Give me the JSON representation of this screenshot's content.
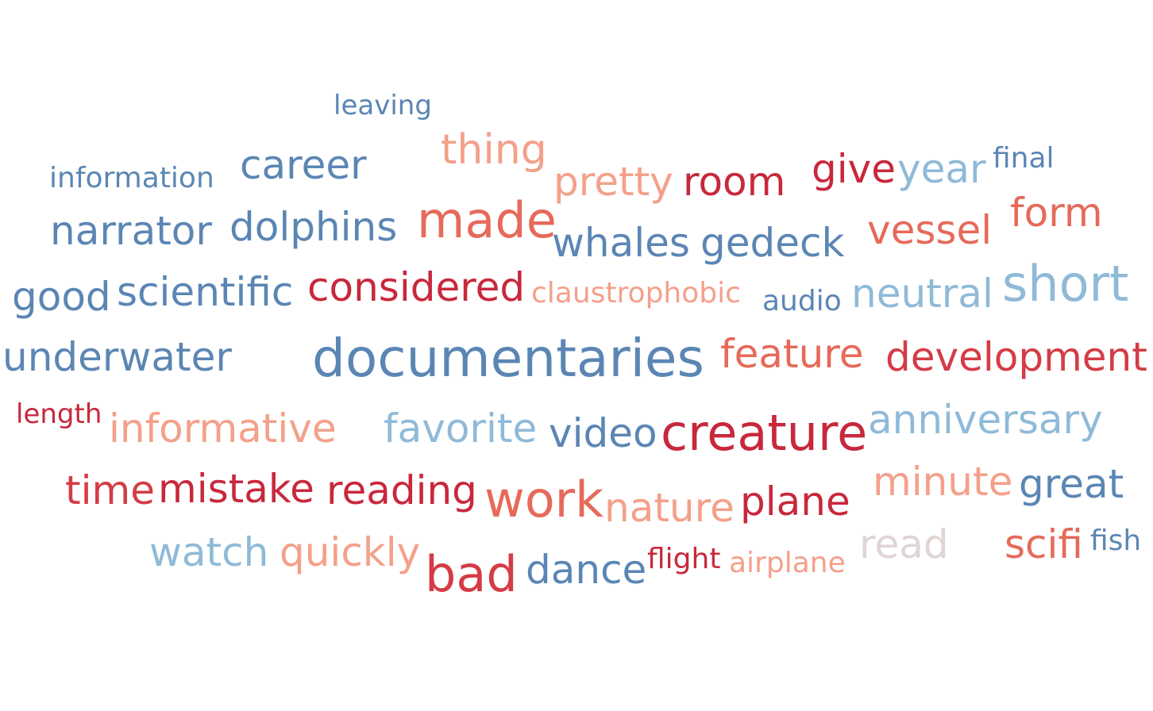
{
  "chart_data": {
    "type": "word_cloud",
    "color_scale": {
      "negative": "#c8283c",
      "positive": "#4a7aaa",
      "neutral": "#e0d4d4"
    },
    "words": [
      {
        "text": "leaving",
        "weight": 1,
        "color": "#5b86b4"
      },
      {
        "text": "thing",
        "weight": 3,
        "color": "#f4a08a"
      },
      {
        "text": "information",
        "weight": 1,
        "color": "#5b86b4"
      },
      {
        "text": "career",
        "weight": 3,
        "color": "#5b86b4"
      },
      {
        "text": "pretty",
        "weight": 3,
        "color": "#f4a08a"
      },
      {
        "text": "room",
        "weight": 3,
        "color": "#c8283c"
      },
      {
        "text": "give",
        "weight": 3,
        "color": "#c8283c"
      },
      {
        "text": "year",
        "weight": 3,
        "color": "#8fbad8"
      },
      {
        "text": "final",
        "weight": 1,
        "color": "#5b86b4"
      },
      {
        "text": "narrator",
        "weight": 3,
        "color": "#5b86b4"
      },
      {
        "text": "dolphins",
        "weight": 3,
        "color": "#5b86b4"
      },
      {
        "text": "made",
        "weight": 4,
        "color": "#e66a5a"
      },
      {
        "text": "whales",
        "weight": 3,
        "color": "#5b86b4"
      },
      {
        "text": "gedeck",
        "weight": 3,
        "color": "#5b86b4"
      },
      {
        "text": "vessel",
        "weight": 3,
        "color": "#e66a5a"
      },
      {
        "text": "form",
        "weight": 3,
        "color": "#e66a5a"
      },
      {
        "text": "good",
        "weight": 3,
        "color": "#5b86b4"
      },
      {
        "text": "scientific",
        "weight": 3,
        "color": "#5b86b4"
      },
      {
        "text": "considered",
        "weight": 3,
        "color": "#c8283c"
      },
      {
        "text": "claustrophobic",
        "weight": 1,
        "color": "#f4a08a"
      },
      {
        "text": "audio",
        "weight": 1,
        "color": "#5b86b4"
      },
      {
        "text": "neutral",
        "weight": 3,
        "color": "#8fbad8"
      },
      {
        "text": "short",
        "weight": 4,
        "color": "#8fbad8"
      },
      {
        "text": "underwater",
        "weight": 3,
        "color": "#5b86b4"
      },
      {
        "text": "documentaries",
        "weight": 5,
        "color": "#5b86b4"
      },
      {
        "text": "feature",
        "weight": 3,
        "color": "#e66a5a"
      },
      {
        "text": "development",
        "weight": 3,
        "color": "#d43c46"
      },
      {
        "text": "length",
        "weight": 1,
        "color": "#c8283c"
      },
      {
        "text": "informative",
        "weight": 3,
        "color": "#f4a08a"
      },
      {
        "text": "favorite",
        "weight": 3,
        "color": "#8fbad8"
      },
      {
        "text": "video",
        "weight": 3,
        "color": "#5b86b4"
      },
      {
        "text": "creature",
        "weight": 4,
        "color": "#c8283c"
      },
      {
        "text": "anniversary",
        "weight": 3,
        "color": "#8fbad8"
      },
      {
        "text": "time",
        "weight": 3,
        "color": "#d43c46"
      },
      {
        "text": "mistake",
        "weight": 3,
        "color": "#c8283c"
      },
      {
        "text": "reading",
        "weight": 3,
        "color": "#c8283c"
      },
      {
        "text": "work",
        "weight": 4,
        "color": "#e66a5a"
      },
      {
        "text": "nature",
        "weight": 3,
        "color": "#f4a08a"
      },
      {
        "text": "plane",
        "weight": 3,
        "color": "#c8283c"
      },
      {
        "text": "minute",
        "weight": 3,
        "color": "#f4a08a"
      },
      {
        "text": "great",
        "weight": 3,
        "color": "#5b86b4"
      },
      {
        "text": "watch",
        "weight": 3,
        "color": "#8fbad8"
      },
      {
        "text": "quickly",
        "weight": 3,
        "color": "#f4a08a"
      },
      {
        "text": "bad",
        "weight": 4,
        "color": "#d43c46"
      },
      {
        "text": "dance",
        "weight": 3,
        "color": "#5b86b4"
      },
      {
        "text": "flight",
        "weight": 1,
        "color": "#c8283c"
      },
      {
        "text": "airplane",
        "weight": 1,
        "color": "#f4a08a"
      },
      {
        "text": "read",
        "weight": 3,
        "color": "#e0d4d4"
      },
      {
        "text": "scifi",
        "weight": 3,
        "color": "#e66a5a"
      },
      {
        "text": "fish",
        "weight": 1,
        "color": "#5b86b4"
      }
    ]
  }
}
